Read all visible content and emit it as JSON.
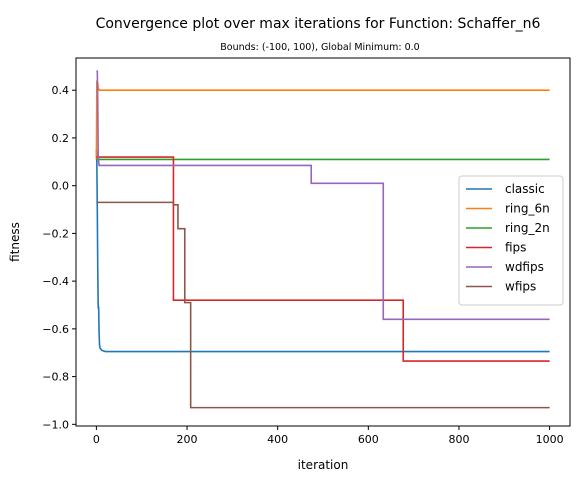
{
  "chart_data": {
    "type": "line",
    "title": "Convergence plot over max iterations for Function: Schaffer_n6",
    "subtitle": "Bounds: (-100, 100), Global Minimum: 0.0",
    "xlabel": "iteration",
    "ylabel": "fitness",
    "xlim": [
      -45,
      1045
    ],
    "ylim": [
      -1.007,
      0.535
    ],
    "x_ticks": [
      0,
      200,
      400,
      600,
      800,
      1000
    ],
    "y_ticks": [
      -1.0,
      -0.8,
      -0.6,
      -0.4,
      -0.2,
      0.0,
      0.2,
      0.4
    ],
    "x_tick_labels": [
      "0",
      "200",
      "400",
      "600",
      "800",
      "1000"
    ],
    "y_tick_labels": [
      "−1.0",
      "−0.8",
      "−0.6",
      "−0.4",
      "−0.2",
      "0.0",
      "0.2",
      "0.4"
    ],
    "grid": false,
    "legend_position": "center-right",
    "series": [
      {
        "name": "classic",
        "color": "#1f77b4",
        "points": [
          [
            0,
            0.15
          ],
          [
            1,
            0.1
          ],
          [
            2,
            -0.1
          ],
          [
            3,
            -0.35
          ],
          [
            4,
            -0.51
          ],
          [
            5,
            -0.51
          ],
          [
            6,
            -0.62
          ],
          [
            7,
            -0.67
          ],
          [
            8,
            -0.68
          ],
          [
            12,
            -0.69
          ],
          [
            20,
            -0.695
          ],
          [
            1000,
            -0.695
          ]
        ]
      },
      {
        "name": "ring_6n",
        "color": "#ff7f0e",
        "points": [
          [
            0,
            0.11
          ],
          [
            1,
            0.44
          ],
          [
            2,
            0.43
          ],
          [
            3,
            0.43
          ],
          [
            4,
            0.41
          ],
          [
            6,
            0.4
          ],
          [
            1000,
            0.4
          ]
        ]
      },
      {
        "name": "ring_2n",
        "color": "#2ca02c",
        "points": [
          [
            0,
            0.11
          ],
          [
            1000,
            0.11
          ]
        ]
      },
      {
        "name": "fips",
        "color": "#d62728",
        "points": [
          [
            0,
            0.12
          ],
          [
            170,
            0.12
          ],
          [
            170,
            -0.48
          ],
          [
            677,
            -0.48
          ],
          [
            677,
            -0.735
          ],
          [
            1000,
            -0.735
          ]
        ]
      },
      {
        "name": "wdfips",
        "color": "#9467bd",
        "points": [
          [
            0,
            0.48
          ],
          [
            2,
            0.48
          ],
          [
            3,
            0.35
          ],
          [
            4,
            0.12
          ],
          [
            6,
            0.085
          ],
          [
            474,
            0.085
          ],
          [
            474,
            0.01
          ],
          [
            633,
            0.01
          ],
          [
            633,
            -0.56
          ],
          [
            1000,
            -0.56
          ]
        ]
      },
      {
        "name": "wfips",
        "color": "#8c564b",
        "points": [
          [
            0,
            -0.07
          ],
          [
            170,
            -0.07
          ],
          [
            170,
            -0.08
          ],
          [
            180,
            -0.08
          ],
          [
            180,
            -0.18
          ],
          [
            195,
            -0.18
          ],
          [
            195,
            -0.49
          ],
          [
            208,
            -0.49
          ],
          [
            208,
            -0.93
          ],
          [
            1000,
            -0.93
          ]
        ]
      }
    ]
  }
}
